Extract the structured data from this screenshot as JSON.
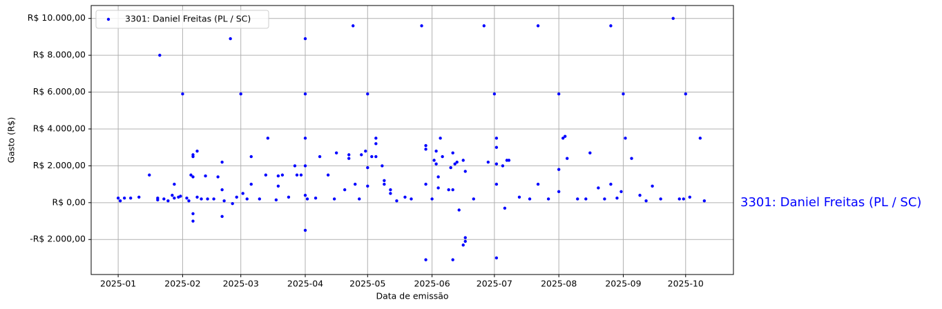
{
  "chart_data": {
    "type": "scatter",
    "x_label": "Data de emissão",
    "y_label": "Gasto (R$)",
    "annotation": "3301: Daniel Freitas (PL / SC)",
    "legend": "upper left",
    "grid": true,
    "xlim": [
      "2024-12-19",
      "2025-10-24"
    ],
    "xticks": [
      "2025-01",
      "2025-02",
      "2025-03",
      "2025-04",
      "2025-05",
      "2025-06",
      "2025-07",
      "2025-08",
      "2025-09",
      "2025-10"
    ],
    "ylim": [
      -3900,
      10700
    ],
    "yticks": [
      {
        "value": -2000,
        "label": "-R$ 2.000,00"
      },
      {
        "value": 0,
        "label": "R$ 0,00"
      },
      {
        "value": 2000,
        "label": "R$ 2.000,00"
      },
      {
        "value": 4000,
        "label": "R$ 4.000,00"
      },
      {
        "value": 6000,
        "label": "R$ 6.000,00"
      },
      {
        "value": 8000,
        "label": "R$ 8.000,00"
      },
      {
        "value": 10000,
        "label": "R$ 10.000,00"
      }
    ],
    "series": [
      {
        "name": "3301: Daniel Freitas (PL / SC)",
        "color": "#0000ff",
        "x": [
          "2025-01-01",
          "2025-01-02",
          "2025-01-04",
          "2025-01-07",
          "2025-01-11",
          "2025-01-16",
          "2025-01-20",
          "2025-01-20",
          "2025-01-21",
          "2025-01-23",
          "2025-01-25",
          "2025-01-27",
          "2025-01-28",
          "2025-01-28",
          "2025-01-30",
          "2025-01-31",
          "2025-02-01",
          "2025-02-03",
          "2025-02-04",
          "2025-02-05",
          "2025-02-06",
          "2025-02-06",
          "2025-02-06",
          "2025-02-06",
          "2025-02-06",
          "2025-02-08",
          "2025-02-08",
          "2025-02-10",
          "2025-02-12",
          "2025-02-13",
          "2025-02-16",
          "2025-02-18",
          "2025-02-20",
          "2025-02-20",
          "2025-02-20",
          "2025-02-21",
          "2025-02-24",
          "2025-02-25",
          "2025-02-27",
          "2025-03-01",
          "2025-03-02",
          "2025-03-04",
          "2025-03-06",
          "2025-03-06",
          "2025-03-10",
          "2025-03-13",
          "2025-03-14",
          "2025-03-18",
          "2025-03-19",
          "2025-03-19",
          "2025-03-21",
          "2025-03-24",
          "2025-03-27",
          "2025-03-28",
          "2025-03-30",
          "2025-04-01",
          "2025-04-01",
          "2025-04-01",
          "2025-04-01",
          "2025-04-01",
          "2025-04-01",
          "2025-04-02",
          "2025-04-06",
          "2025-04-08",
          "2025-04-12",
          "2025-04-15",
          "2025-04-16",
          "2025-04-20",
          "2025-04-22",
          "2025-04-22",
          "2025-04-24",
          "2025-04-25",
          "2025-04-27",
          "2025-04-28",
          "2025-04-30",
          "2025-05-01",
          "2025-05-01",
          "2025-05-01",
          "2025-05-03",
          "2025-05-05",
          "2025-05-05",
          "2025-05-05",
          "2025-05-08",
          "2025-05-09",
          "2025-05-09",
          "2025-05-12",
          "2025-05-12",
          "2025-05-15",
          "2025-05-19",
          "2025-05-22",
          "2025-05-27",
          "2025-05-29",
          "2025-05-29",
          "2025-05-29",
          "2025-05-29",
          "2025-06-01",
          "2025-06-02",
          "2025-06-03",
          "2025-06-03",
          "2025-06-04",
          "2025-06-04",
          "2025-06-05",
          "2025-06-06",
          "2025-06-09",
          "2025-06-10",
          "2025-06-11",
          "2025-06-11",
          "2025-06-11",
          "2025-06-12",
          "2025-06-13",
          "2025-06-14",
          "2025-06-16",
          "2025-06-17",
          "2025-06-17",
          "2025-06-17",
          "2025-06-16",
          "2025-06-21",
          "2025-06-26",
          "2025-06-28",
          "2025-07-01",
          "2025-07-02",
          "2025-07-02",
          "2025-07-02",
          "2025-07-02",
          "2025-07-02",
          "2025-07-05",
          "2025-07-06",
          "2025-07-07",
          "2025-07-08",
          "2025-07-13",
          "2025-07-18",
          "2025-07-22",
          "2025-07-22",
          "2025-07-27",
          "2025-08-01",
          "2025-08-01",
          "2025-08-01",
          "2025-08-03",
          "2025-08-04",
          "2025-08-05",
          "2025-08-10",
          "2025-08-14",
          "2025-08-16",
          "2025-08-20",
          "2025-08-23",
          "2025-08-26",
          "2025-08-26",
          "2025-08-29",
          "2025-08-31",
          "2025-09-01",
          "2025-09-02",
          "2025-09-05",
          "2025-09-09",
          "2025-09-12",
          "2025-09-15",
          "2025-09-19",
          "2025-09-25",
          "2025-09-28",
          "2025-09-30",
          "2025-10-01",
          "2025-10-03",
          "2025-10-08",
          "2025-10-10"
        ],
        "values": [
          250,
          100,
          250,
          250,
          300,
          1500,
          250,
          150,
          8000,
          200,
          100,
          400,
          1000,
          250,
          300,
          350,
          5900,
          250,
          100,
          1500,
          2600,
          2500,
          1400,
          -600,
          -1000,
          2800,
          300,
          200,
          1450,
          200,
          200,
          1400,
          2200,
          700,
          -750,
          100,
          8900,
          -50,
          300,
          5900,
          500,
          200,
          1000,
          2500,
          200,
          1500,
          3500,
          150,
          900,
          1450,
          1500,
          300,
          2000,
          1500,
          1500,
          8900,
          5900,
          3500,
          2000,
          400,
          -1500,
          200,
          250,
          2500,
          1500,
          200,
          2700,
          700,
          2600,
          2400,
          9600,
          1000,
          200,
          2600,
          2800,
          5900,
          1900,
          900,
          2500,
          3500,
          3200,
          2500,
          2000,
          1200,
          1000,
          700,
          500,
          100,
          300,
          200,
          9600,
          2900,
          3100,
          1000,
          -3100,
          200,
          2300,
          2100,
          2800,
          1400,
          800,
          3500,
          2500,
          700,
          1900,
          2700,
          700,
          -3100,
          2100,
          2200,
          -400,
          2300,
          1700,
          -1900,
          -2100,
          -2300,
          200,
          9600,
          2200,
          5900,
          3500,
          3000,
          2100,
          1000,
          -3000,
          2000,
          -300,
          2300,
          2300,
          300,
          200,
          1000,
          9600,
          200,
          5900,
          1800,
          600,
          3500,
          3600,
          2400,
          200,
          200,
          2700,
          800,
          200,
          9600,
          1000,
          250,
          600,
          5900,
          3500,
          2400,
          400,
          100,
          900,
          200,
          10000,
          200,
          200,
          5900,
          300,
          3500,
          100
        ]
      }
    ]
  }
}
